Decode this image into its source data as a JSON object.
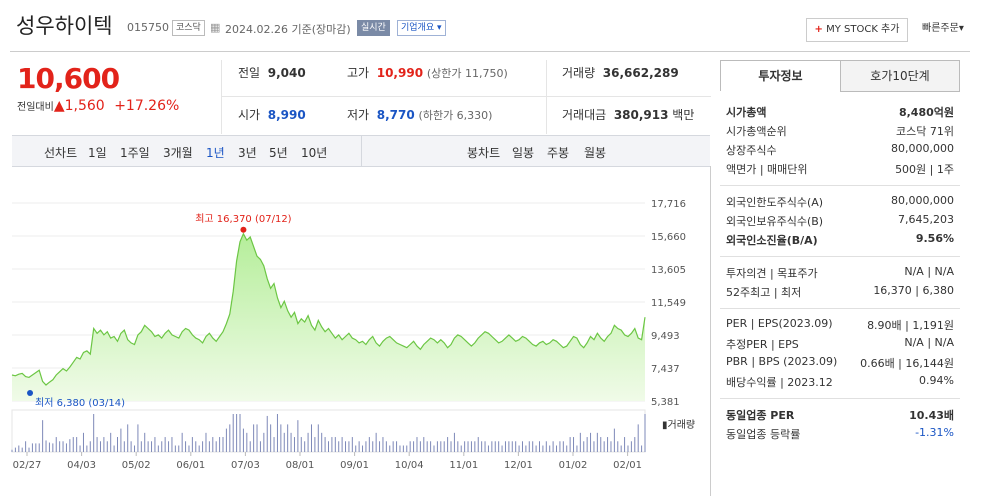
{
  "stock": {
    "name": "성우하이텍",
    "code": "015750",
    "market_tag": "코스닥",
    "date": "2024.02.26",
    "basis": "기준(장마감)",
    "realtime": "실시간",
    "company_info": "기업개요",
    "mystock": "MY STOCK 추가",
    "quick_order": "빠른주문",
    "price": "10,600",
    "change_label": "전일대비",
    "change_value": "1,560",
    "change_pct": "+17.26%"
  },
  "summary": {
    "prev_label": "전일",
    "prev_value": "9,040",
    "high_label": "고가",
    "high_value": "10,990",
    "high_sub": "(상한가 11,750)",
    "volume_label": "거래량",
    "volume_value": "36,662,289",
    "open_label": "시가",
    "open_value": "8,990",
    "low_label": "저가",
    "low_value": "8,770",
    "low_sub": "(하한가 6,330)",
    "amount_label": "거래대금",
    "amount_value": "380,913",
    "amount_unit": "백만"
  },
  "period": {
    "line_label": "선차트",
    "line_items": [
      "1일",
      "1주일",
      "3개월",
      "1년",
      "3년",
      "5년",
      "10년"
    ],
    "active_index": 3,
    "candle_label": "봉차트",
    "candle_items": [
      "일봉",
      "주봉",
      "월봉"
    ]
  },
  "sidebar": {
    "tab1": "투자정보",
    "tab2": "호가10단계",
    "group1": [
      {
        "label": "시가총액",
        "value": "8,480억원",
        "bold": true
      },
      {
        "label": "시가총액순위",
        "value": "코스닥 71위"
      },
      {
        "label": "상장주식수",
        "value": "80,000,000"
      },
      {
        "label": "액면가 | 매매단위",
        "value": "500원 | 1주"
      }
    ],
    "group2": [
      {
        "label": "외국인한도주식수(A)",
        "value": "80,000,000"
      },
      {
        "label": "외국인보유주식수(B)",
        "value": "7,645,203"
      },
      {
        "label": "외국인소진율(B/A)",
        "value": "9.56%",
        "bold": true
      }
    ],
    "group3": [
      {
        "label": "투자의견 | 목표주가",
        "value": "N/A | N/A"
      },
      {
        "label": "52주최고 | 최저",
        "value": "16,370 | 6,380"
      }
    ],
    "group4": [
      {
        "label": "PER | EPS(2023.09)",
        "value": "8.90배 | 1,191원"
      },
      {
        "label": "추정PER | EPS",
        "value": "N/A | N/A"
      },
      {
        "label": "PBR | BPS (2023.09)",
        "value": "0.66배 | 16,144원"
      },
      {
        "label": "배당수익률 | 2023.12",
        "value": "0.94%"
      }
    ],
    "group5": [
      {
        "label": "동일업종 PER",
        "value": "10.43배",
        "bold": true
      },
      {
        "label": "동일업종 등락률",
        "value": "-1.31%",
        "blue": true
      }
    ]
  },
  "chart_data": {
    "type": "area",
    "high_label": "최고 16,370 (07/12)",
    "low_label": "최저 6,380 (03/14)",
    "volume_label": "거래량",
    "y_ticks": [
      "17,716",
      "15,660",
      "13,605",
      "11,549",
      "9,493",
      "7,437",
      "5,381"
    ],
    "ylim": [
      5381,
      17716
    ],
    "x_ticks": [
      "02/27",
      "04/03",
      "05/02",
      "06/01",
      "07/03",
      "08/01",
      "09/01",
      "10/04",
      "11/01",
      "12/01",
      "01/02",
      "02/01"
    ],
    "prices": [
      7000,
      6950,
      7050,
      7100,
      6900,
      6850,
      7000,
      7150,
      7300,
      6600,
      6380,
      6550,
      6700,
      7000,
      7200,
      7400,
      7250,
      7500,
      7800,
      8100,
      8000,
      8400,
      8500,
      8300,
      9900,
      9600,
      9800,
      9500,
      9700,
      9300,
      9400,
      9100,
      9600,
      9800,
      9200,
      9000,
      8900,
      9500,
      9700,
      10100,
      9900,
      9700,
      9400,
      9500,
      9300,
      9600,
      9800,
      9500,
      9400,
      9300,
      9700,
      9900,
      9800,
      9500,
      9300,
      9200,
      9000,
      9400,
      9600,
      9300,
      9100,
      9400,
      9700,
      10200,
      10800,
      12200,
      14100,
      15300,
      15800,
      15400,
      15600,
      15000,
      14400,
      14200,
      13800,
      13000,
      12400,
      12700,
      11800,
      11200,
      11600,
      11000,
      10600,
      10900,
      10200,
      10500,
      10300,
      10700,
      10100,
      9800,
      10400,
      10000,
      9700,
      9900,
      9600,
      9300,
      9500,
      9200,
      9400,
      9600,
      9300,
      9200,
      9000,
      9100,
      8900,
      9200,
      9400,
      9000,
      8800,
      9100,
      9300,
      9400,
      9200,
      9000,
      8900,
      8800,
      8700,
      8900,
      9100,
      8800,
      8600,
      8900,
      9100,
      9300,
      9200,
      9000,
      9200,
      9000,
      8700,
      8900,
      9300,
      9500,
      9400,
      9200,
      9000,
      8800,
      9000,
      9300,
      9500,
      9700,
      9600,
      9400,
      9200,
      9000,
      9100,
      9300,
      9500,
      9300,
      9100,
      9200,
      9400,
      9300,
      9100,
      8900,
      8800,
      9000,
      9100,
      8900,
      9000,
      9200,
      9100,
      8900,
      8700,
      8800,
      9100,
      9400,
      9300,
      8900,
      8700,
      9000,
      9400,
      9200,
      9600,
      9300,
      9100,
      9400,
      9600,
      10100,
      9900,
      9800,
      9500,
      9400,
      9600,
      9900,
      9300,
      9200,
      10600
    ]
  }
}
